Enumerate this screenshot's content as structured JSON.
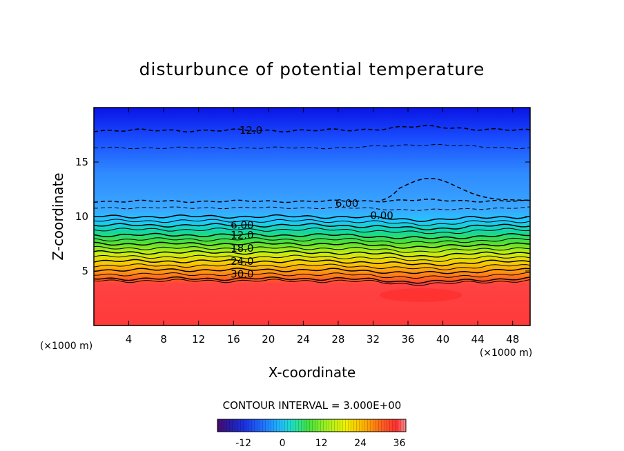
{
  "chart_data": {
    "type": "heatmap",
    "title": "disturbunce of potential temperature",
    "xlabel": "X-coordinate",
    "ylabel": "Z-coordinate",
    "x_unit": "(×1000 m)",
    "z_unit": "(×1000 m)",
    "xlim": [
      0,
      50
    ],
    "ylim": [
      0,
      20
    ],
    "x_ticks": [
      4,
      8,
      12,
      16,
      20,
      24,
      28,
      32,
      36,
      40,
      44,
      48
    ],
    "y_ticks": [
      5,
      10,
      15
    ],
    "contour_interval_text": "CONTOUR INTERVAL = 3.000E+00",
    "colorbar": {
      "range": [
        -20,
        38
      ],
      "ticks": [
        -12,
        0,
        12,
        24,
        36
      ]
    },
    "contour_labels": [
      {
        "text": "12.0",
        "x": 18,
        "z": 17.9
      },
      {
        "text": "6.00",
        "x": 29,
        "z": 11.2
      },
      {
        "text": "0.00",
        "x": 33,
        "z": 10.1
      },
      {
        "text": "6.00",
        "x": 17,
        "z": 9.2
      },
      {
        "text": "12.0",
        "x": 17,
        "z": 8.3
      },
      {
        "text": "18.0",
        "x": 17,
        "z": 7.1
      },
      {
        "text": "24.0",
        "x": 17,
        "z": 5.9
      },
      {
        "text": "30.0",
        "x": 17,
        "z": 4.7
      }
    ]
  }
}
